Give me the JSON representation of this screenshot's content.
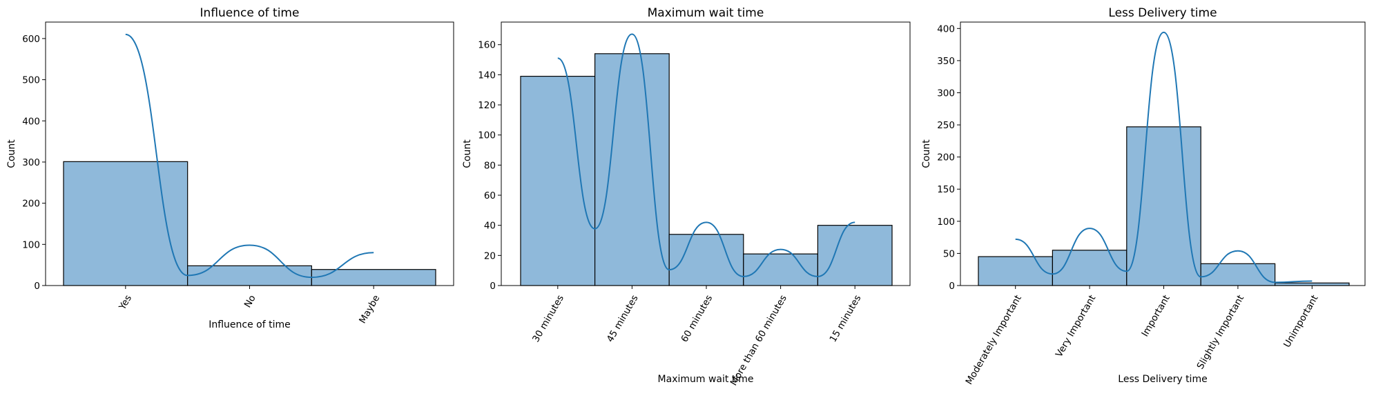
{
  "chart_data": [
    {
      "type": "bar",
      "title": "Influence of time",
      "xlabel": "Influence of time",
      "ylabel": "Count",
      "categories": [
        "Yes",
        "No",
        "Maybe"
      ],
      "values": [
        301,
        48,
        39
      ],
      "ylim": [
        0,
        640
      ],
      "yticks": [
        0,
        100,
        200,
        300,
        400,
        500,
        600
      ],
      "kde": [
        610,
        98,
        80
      ],
      "grid": false
    },
    {
      "type": "bar",
      "title": "Maximum wait time",
      "xlabel": "Maximum wait time",
      "ylabel": "Count",
      "categories": [
        "30 minutes",
        "45 minutes",
        "60 minutes",
        "More than 60 minutes",
        "15 minutes"
      ],
      "values": [
        139,
        154,
        34,
        21,
        40
      ],
      "ylim": [
        0,
        175
      ],
      "yticks": [
        0,
        20,
        40,
        60,
        80,
        100,
        120,
        140,
        160
      ],
      "kde": [
        151,
        167,
        42,
        24,
        42
      ],
      "grid": false
    },
    {
      "type": "bar",
      "title": "Less Delivery time",
      "xlabel": "Less Delivery time",
      "ylabel": "Count",
      "categories": [
        "Moderately Important",
        "Very Important",
        "Important",
        "Slightly Important",
        "Unimportant"
      ],
      "values": [
        45,
        55,
        247,
        34,
        4
      ],
      "ylim": [
        0,
        410
      ],
      "yticks": [
        0,
        50,
        100,
        150,
        200,
        250,
        300,
        350,
        400
      ],
      "kde": [
        72,
        89,
        394,
        54,
        7
      ],
      "grid": false
    }
  ]
}
